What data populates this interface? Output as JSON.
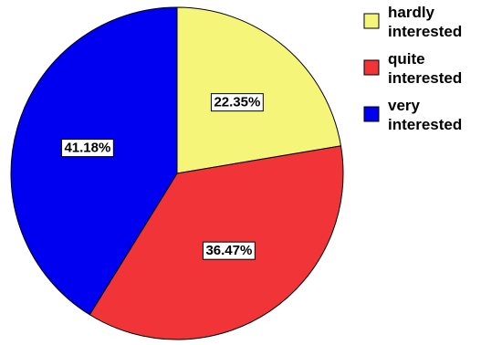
{
  "chart_data": {
    "type": "pie",
    "start_angle_deg": 0,
    "direction": "clockwise",
    "slices": [
      {
        "label": "hardly interested",
        "legend_lines": [
          "hardly",
          "interested"
        ],
        "value": 22.35,
        "display": "22.35%",
        "color": "#f5f57a"
      },
      {
        "label": "quite interested",
        "legend_lines": [
          "quite",
          "interested"
        ],
        "value": 36.47,
        "display": "36.47%",
        "color": "#f03438"
      },
      {
        "label": "very interested",
        "legend_lines": [
          "very",
          "interested"
        ],
        "value": 41.18,
        "display": "41.18%",
        "color": "#0000f0"
      }
    ],
    "legend_position": "top-right"
  }
}
